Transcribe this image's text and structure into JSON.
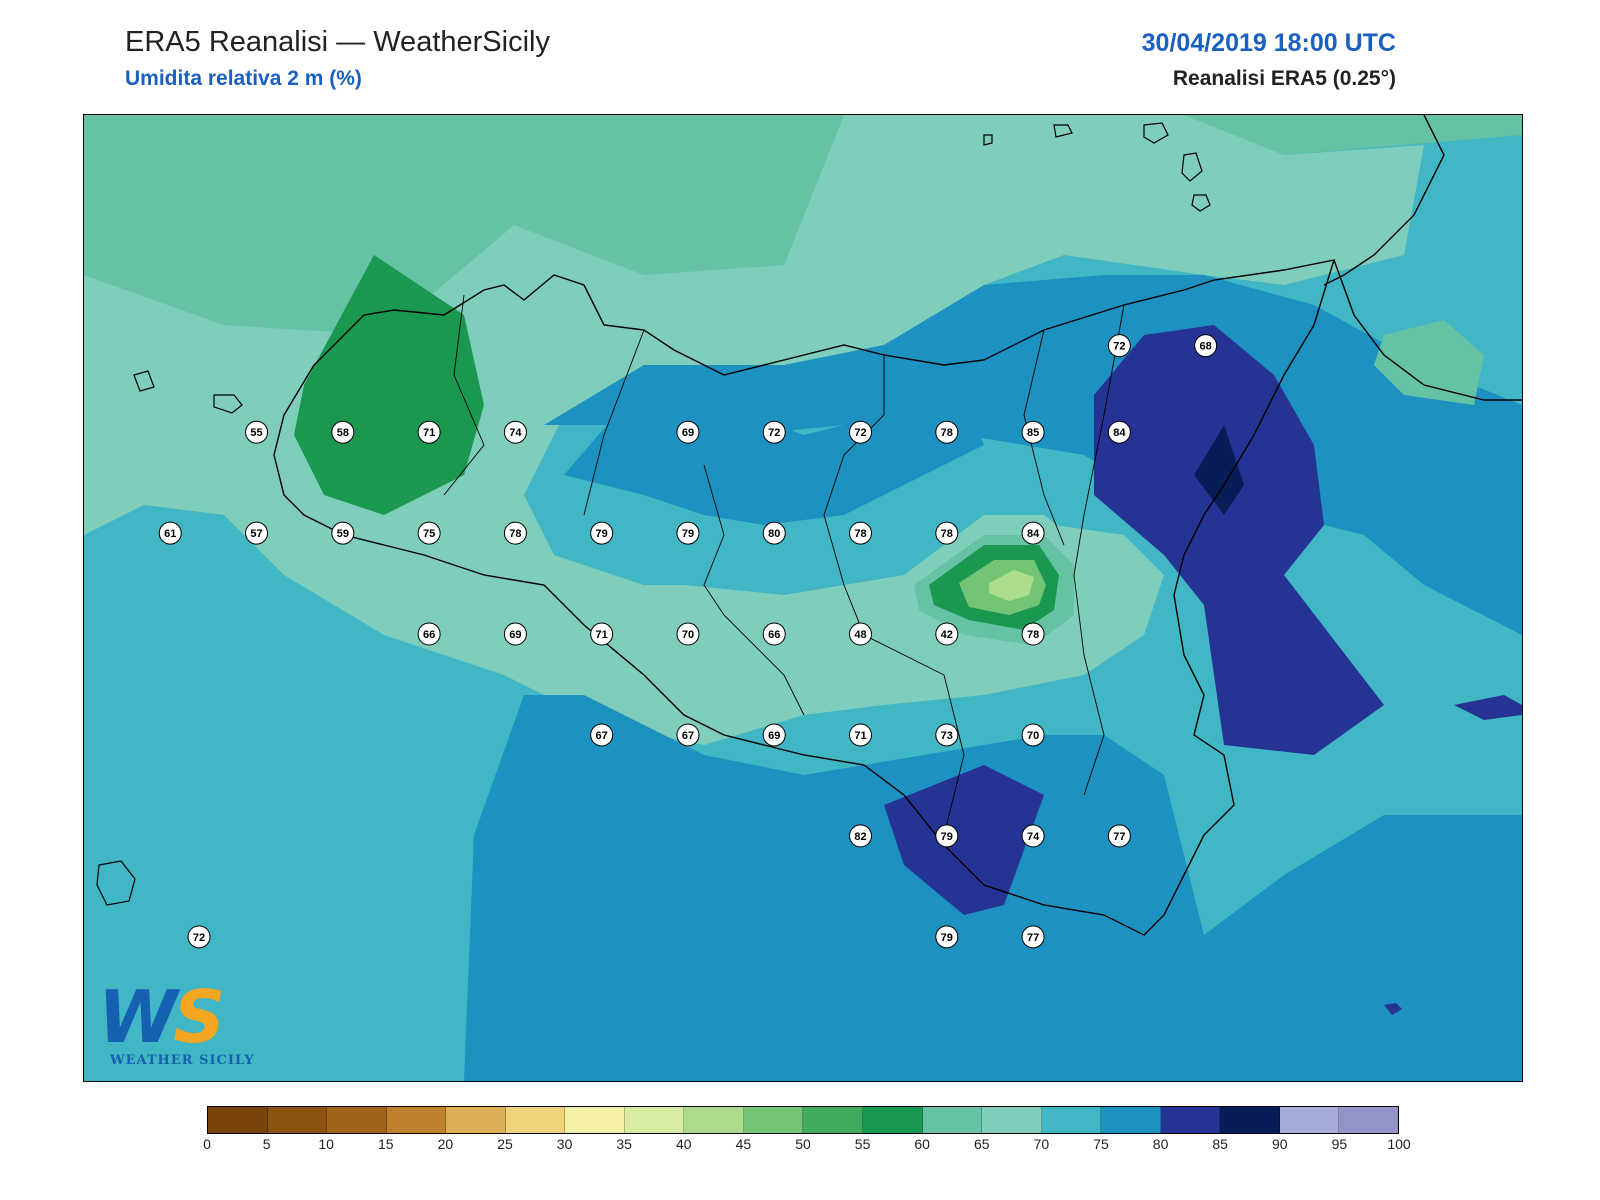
{
  "header": {
    "title": "ERA5 Reanalisi — WeatherSicily",
    "subtitle": "Umidita relativa 2 m (%)",
    "datetime": "30/04/2019 18:00 UTC",
    "model": "Reanalisi ERA5 (0.25°)"
  },
  "logo": {
    "mark_w": "W",
    "mark_s": "S",
    "text": "WEATHER SICILY"
  },
  "colorbar": {
    "ticks": [
      "0",
      "5",
      "10",
      "15",
      "20",
      "25",
      "30",
      "35",
      "40",
      "45",
      "50",
      "55",
      "60",
      "65",
      "70",
      "75",
      "80",
      "85",
      "90",
      "95",
      "100"
    ],
    "colors": [
      "#7a4309",
      "#8e5210",
      "#a0621a",
      "#c0812e",
      "#dcae58",
      "#f0d47c",
      "#f4f1a4",
      "#d8eca4",
      "#acdd8c",
      "#74c476",
      "#41ab5d",
      "#1a9850",
      "#66c2a4",
      "#7fcdbb",
      "#41b6c4",
      "#1d91c0",
      "#253494",
      "#081d58",
      "#a6acd9",
      "#9393c8"
    ]
  },
  "station_values": [
    {
      "v": "55",
      "lat": 38.3,
      "lon": 12.15
    },
    {
      "v": "58",
      "lat": 38.3,
      "lon": 12.45
    },
    {
      "v": "71",
      "lat": 38.3,
      "lon": 12.75
    },
    {
      "v": "74",
      "lat": 38.3,
      "lon": 13.05
    },
    {
      "v": "69",
      "lat": 38.3,
      "lon": 13.65
    },
    {
      "v": "72",
      "lat": 38.3,
      "lon": 13.95
    },
    {
      "v": "72",
      "lat": 38.3,
      "lon": 14.25
    },
    {
      "v": "78",
      "lat": 38.3,
      "lon": 14.55
    },
    {
      "v": "85",
      "lat": 38.3,
      "lon": 14.85
    },
    {
      "v": "84",
      "lat": 38.3,
      "lon": 15.15
    },
    {
      "v": "72",
      "lat": 38.6,
      "lon": 15.15
    },
    {
      "v": "68",
      "lat": 38.6,
      "lon": 15.45
    },
    {
      "v": "61",
      "lat": 37.95,
      "lon": 11.85
    },
    {
      "v": "57",
      "lat": 37.95,
      "lon": 12.15
    },
    {
      "v": "59",
      "lat": 37.95,
      "lon": 12.45
    },
    {
      "v": "75",
      "lat": 37.95,
      "lon": 12.75
    },
    {
      "v": "78",
      "lat": 37.95,
      "lon": 13.05
    },
    {
      "v": "79",
      "lat": 37.95,
      "lon": 13.35
    },
    {
      "v": "79",
      "lat": 37.95,
      "lon": 13.65
    },
    {
      "v": "80",
      "lat": 37.95,
      "lon": 13.95
    },
    {
      "v": "78",
      "lat": 37.95,
      "lon": 14.25
    },
    {
      "v": "78",
      "lat": 37.95,
      "lon": 14.55
    },
    {
      "v": "84",
      "lat": 37.95,
      "lon": 14.85
    },
    {
      "v": "66",
      "lat": 37.6,
      "lon": 12.75
    },
    {
      "v": "69",
      "lat": 37.6,
      "lon": 13.05
    },
    {
      "v": "71",
      "lat": 37.6,
      "lon": 13.35
    },
    {
      "v": "70",
      "lat": 37.6,
      "lon": 13.65
    },
    {
      "v": "66",
      "lat": 37.6,
      "lon": 13.95
    },
    {
      "v": "48",
      "lat": 37.6,
      "lon": 14.25
    },
    {
      "v": "42",
      "lat": 37.6,
      "lon": 14.55
    },
    {
      "v": "78",
      "lat": 37.6,
      "lon": 14.85
    },
    {
      "v": "67",
      "lat": 37.25,
      "lon": 13.35
    },
    {
      "v": "67",
      "lat": 37.25,
      "lon": 13.65
    },
    {
      "v": "69",
      "lat": 37.25,
      "lon": 13.95
    },
    {
      "v": "71",
      "lat": 37.25,
      "lon": 14.25
    },
    {
      "v": "73",
      "lat": 37.25,
      "lon": 14.55
    },
    {
      "v": "70",
      "lat": 37.25,
      "lon": 14.85
    },
    {
      "v": "82",
      "lat": 36.9,
      "lon": 14.25
    },
    {
      "v": "79",
      "lat": 36.9,
      "lon": 14.55
    },
    {
      "v": "74",
      "lat": 36.9,
      "lon": 14.85
    },
    {
      "v": "77",
      "lat": 36.9,
      "lon": 15.15
    },
    {
      "v": "79",
      "lat": 36.55,
      "lon": 14.55
    },
    {
      "v": "77",
      "lat": 36.55,
      "lon": 14.85
    },
    {
      "v": "72",
      "lat": 36.55,
      "lon": 11.95
    }
  ]
}
